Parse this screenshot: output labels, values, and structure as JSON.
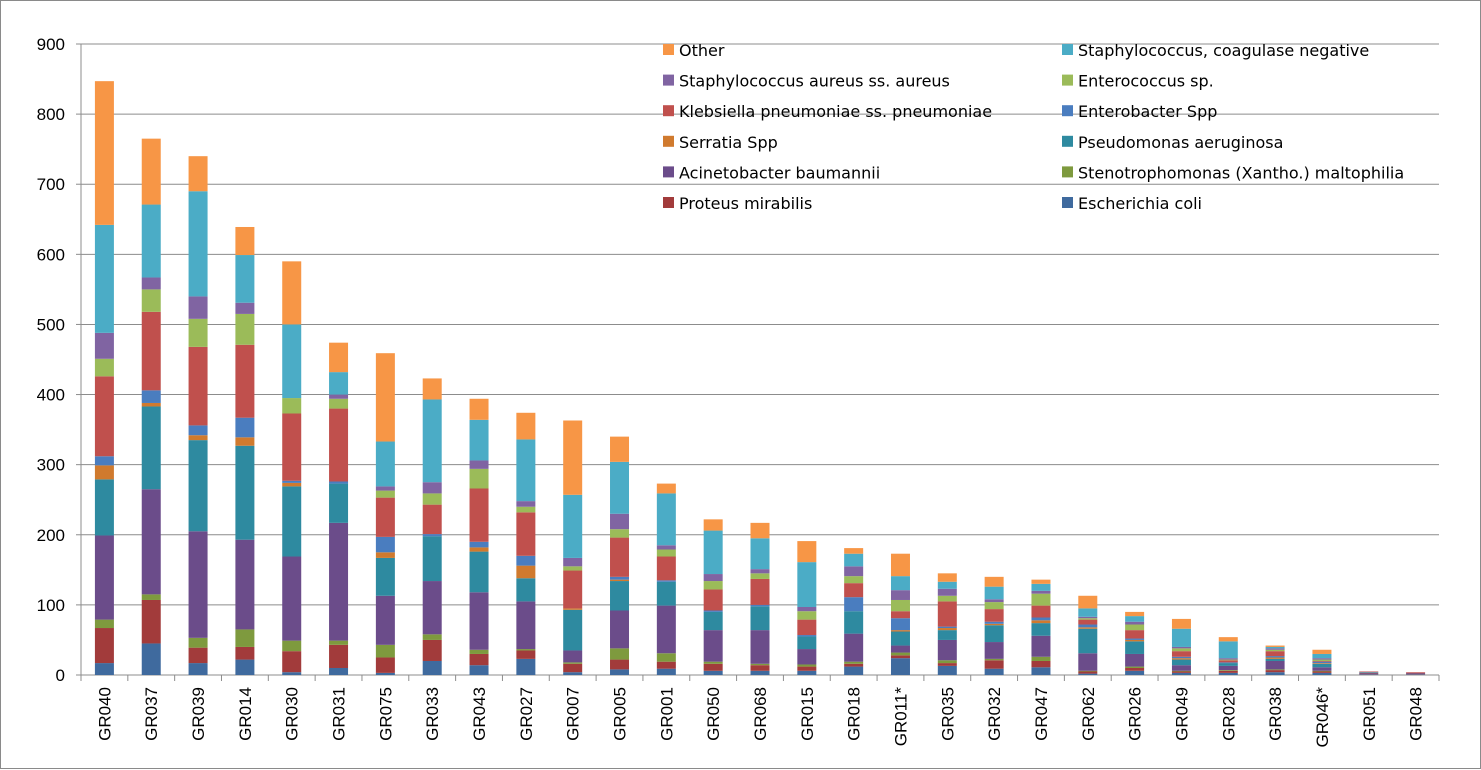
{
  "chart_data": {
    "type": "bar",
    "stacked": true,
    "ylim": [
      0,
      900
    ],
    "yticks": [
      0,
      100,
      200,
      300,
      400,
      500,
      600,
      700,
      800,
      900
    ],
    "grid": true,
    "legend_position": "top-right",
    "categories": [
      "GR040",
      "GR037",
      "GR039",
      "GR014",
      "GR030",
      "GR031",
      "GR075",
      "GR033",
      "GR043",
      "GR027",
      "GR007",
      "GR005",
      "GR001",
      "GR050",
      "GR068",
      "GR015",
      "GR018",
      "GR011*",
      "GR035",
      "GR032",
      "GR047",
      "GR062",
      "GR026",
      "GR049",
      "GR028",
      "GR038",
      "GR046*",
      "GR051",
      "GR048"
    ],
    "legend_order": [
      "Other",
      "Staphylococcus, coagulase negative",
      "Staphylococcus aureus ss. aureus",
      "Enterococcus sp.",
      "Klebsiella pneumoniae ss. pneumoniae",
      "Enterobacter Spp",
      "Serratia Spp",
      "Pseudomonas aeruginosa",
      "Acinetobacter baumannii",
      "Stenotrophomonas (Xantho.) maltophilia",
      "Proteus mirabilis",
      "Escherichia coli"
    ],
    "series": [
      {
        "name": "Escherichia coli",
        "color": "#3F6A9E",
        "values": [
          17,
          45,
          17,
          22,
          4,
          10,
          3,
          20,
          14,
          23,
          4,
          8,
          9,
          6,
          6,
          6,
          12,
          24,
          13,
          9,
          11,
          2,
          6,
          3,
          3,
          4,
          3,
          1,
          1
        ]
      },
      {
        "name": "Proteus mirabilis",
        "color": "#A23B3B",
        "values": [
          50,
          62,
          22,
          18,
          30,
          33,
          22,
          30,
          16,
          12,
          12,
          14,
          10,
          10,
          8,
          6,
          4,
          4,
          4,
          12,
          9,
          3,
          4,
          2,
          3,
          3,
          2,
          1,
          1
        ]
      },
      {
        "name": "Stenotrophomonas (Xantho.) maltophilia",
        "color": "#7E9A3E",
        "values": [
          12,
          8,
          14,
          25,
          15,
          6,
          18,
          8,
          6,
          2,
          2,
          16,
          12,
          3,
          2,
          3,
          3,
          4,
          4,
          2,
          6,
          1,
          2,
          1,
          1,
          1,
          1,
          0,
          0
        ]
      },
      {
        "name": "Acinetobacter baumannii",
        "color": "#6B4C8A",
        "values": [
          120,
          150,
          152,
          128,
          120,
          168,
          70,
          76,
          82,
          68,
          17,
          54,
          68,
          45,
          48,
          22,
          40,
          10,
          29,
          24,
          30,
          25,
          18,
          8,
          6,
          12,
          5,
          1,
          1
        ]
      },
      {
        "name": "Pseudomonas aeruginosa",
        "color": "#2E8AA0",
        "values": [
          80,
          118,
          130,
          134,
          100,
          56,
          54,
          64,
          58,
          33,
          58,
          42,
          34,
          26,
          34,
          18,
          32,
          20,
          14,
          24,
          18,
          35,
          18,
          8,
          4,
          3,
          5,
          1,
          0
        ]
      },
      {
        "name": "Serratia Spp",
        "color": "#D07A2E",
        "values": [
          20,
          5,
          7,
          12,
          5,
          0,
          8,
          0,
          6,
          18,
          2,
          2,
          0,
          0,
          0,
          0,
          0,
          2,
          3,
          2,
          4,
          2,
          2,
          2,
          0,
          2,
          1,
          0,
          0
        ]
      },
      {
        "name": "Enterobacter Spp",
        "color": "#4A7DBF",
        "values": [
          13,
          18,
          14,
          28,
          3,
          3,
          22,
          3,
          8,
          14,
          0,
          4,
          2,
          2,
          2,
          2,
          20,
          17,
          2,
          3,
          4,
          4,
          2,
          2,
          1,
          2,
          2,
          0,
          0
        ]
      },
      {
        "name": "Klebsiella pneumoniae ss. pneumoniae",
        "color": "#C0504D",
        "values": [
          114,
          112,
          112,
          104,
          96,
          104,
          56,
          42,
          76,
          62,
          54,
          56,
          34,
          30,
          37,
          22,
          20,
          10,
          36,
          18,
          17,
          7,
          12,
          8,
          3,
          7,
          1,
          1,
          1
        ]
      },
      {
        "name": "Enterococcus sp.",
        "color": "#9BBB59",
        "values": [
          25,
          32,
          40,
          44,
          22,
          14,
          10,
          16,
          28,
          8,
          6,
          12,
          10,
          12,
          8,
          12,
          10,
          16,
          8,
          10,
          17,
          2,
          8,
          4,
          1,
          2,
          2,
          0,
          0
        ]
      },
      {
        "name": "Staphylococcus aureus ss. aureus",
        "color": "#8064A2",
        "values": [
          37,
          17,
          32,
          16,
          0,
          6,
          6,
          16,
          12,
          8,
          12,
          22,
          6,
          10,
          6,
          6,
          14,
          14,
          10,
          4,
          4,
          2,
          4,
          2,
          2,
          2,
          2,
          0,
          0
        ]
      },
      {
        "name": "Staphylococcus, coagulase negative",
        "color": "#4BACC6",
        "values": [
          154,
          104,
          150,
          68,
          105,
          32,
          64,
          118,
          58,
          88,
          90,
          74,
          74,
          62,
          44,
          64,
          18,
          20,
          10,
          18,
          10,
          12,
          8,
          26,
          24,
          2,
          6,
          0,
          0
        ]
      },
      {
        "name": "Other",
        "color": "#F79646",
        "values": [
          205,
          94,
          50,
          40,
          90,
          42,
          126,
          30,
          30,
          38,
          106,
          36,
          14,
          16,
          22,
          30,
          8,
          32,
          12,
          14,
          6,
          18,
          6,
          14,
          6,
          2,
          6,
          0,
          0
        ]
      }
    ]
  }
}
